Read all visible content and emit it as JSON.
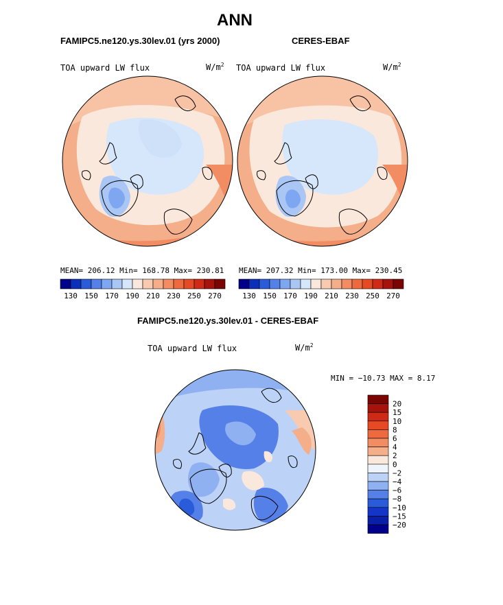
{
  "main_title": "ANN",
  "panels": [
    {
      "header": "FAMIPC5.ne120.ys.30lev.01 (yrs 2000)",
      "variable": "TOA upward LW flux",
      "units": "W/m",
      "units_exp": "2",
      "stats": "MEAN= 206.12  Min= 168.78  Max= 230.81"
    },
    {
      "header": "CERES-EBAF",
      "variable": "TOA upward LW flux",
      "units": "W/m",
      "units_exp": "2",
      "stats": "MEAN= 207.32  Min= 173.00  Max= 230.45"
    }
  ],
  "diff_panel": {
    "header": "FAMIPC5.ne120.ys.30lev.01 - CERES-EBAF",
    "variable": "TOA upward LW flux",
    "units": "W/m",
    "units_exp": "2",
    "minmax": "MIN = −10.73 MAX =   8.17"
  },
  "horizontal_colorbar": {
    "colors": [
      "#00008b",
      "#0a2fb8",
      "#2a5bd8",
      "#5580e8",
      "#7fa6f0",
      "#a9c6f5",
      "#d6e6fb",
      "#fbe8dc",
      "#f8cbb0",
      "#f5ae8a",
      "#f28c62",
      "#ee6a3e",
      "#e54a25",
      "#cf2a17",
      "#a5130c",
      "#7a0604"
    ],
    "tick_labels": [
      "130",
      "150",
      "170",
      "190",
      "210",
      "230",
      "250",
      "270"
    ]
  },
  "vertical_colorbar": {
    "colors": [
      "#7a0604",
      "#a5130c",
      "#cf2a17",
      "#e54a25",
      "#ee6a3e",
      "#f28c62",
      "#f5ae8a",
      "#fbe8dc",
      "#eef3fc",
      "#bcd2f7",
      "#8fb1f1",
      "#5580e8",
      "#2a5bd8",
      "#1535c8",
      "#0a1fa8",
      "#00008b"
    ],
    "tick_labels": [
      "20",
      "15",
      "10",
      "8",
      "6",
      "4",
      "2",
      "0",
      "−2",
      "−4",
      "−6",
      "−8",
      "−10",
      "−15",
      "−20"
    ]
  }
}
